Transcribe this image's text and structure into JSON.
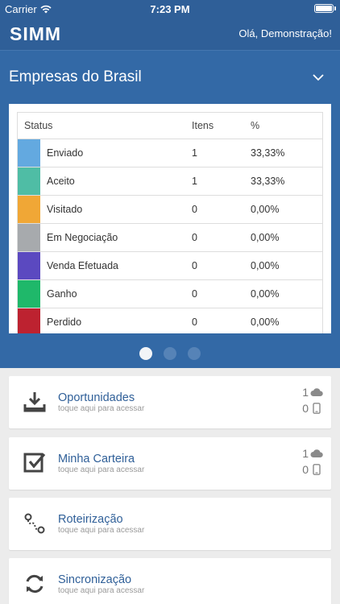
{
  "status_bar": {
    "carrier": "Carrier",
    "time": "7:23 PM"
  },
  "app": {
    "logo": "SIMM",
    "greeting": "Olá, Demonstração!"
  },
  "dashboard": {
    "company": "Empresas do Brasil",
    "table": {
      "headers": {
        "status": "Status",
        "items": "Itens",
        "percent": "%"
      },
      "rows": [
        {
          "label": "Enviado",
          "items": "1",
          "percent": "33,33%",
          "color": "#63a9e0"
        },
        {
          "label": "Aceito",
          "items": "1",
          "percent": "33,33%",
          "color": "#4fbda5"
        },
        {
          "label": "Visitado",
          "items": "0",
          "percent": "0,00%",
          "color": "#f0a736"
        },
        {
          "label": "Em Negociação",
          "items": "0",
          "percent": "0,00%",
          "color": "#a7aaad"
        },
        {
          "label": "Venda Efetuada",
          "items": "0",
          "percent": "0,00%",
          "color": "#5b49c0"
        },
        {
          "label": "Ganho",
          "items": "0",
          "percent": "0,00%",
          "color": "#1fb86a"
        },
        {
          "label": "Perdido",
          "items": "0",
          "percent": "0,00%",
          "color": "#bd2230"
        }
      ]
    },
    "pager": {
      "total": 3,
      "active": 1
    }
  },
  "menu": [
    {
      "title": "Oportunidades",
      "subtitle": "toque aqui para acessar",
      "icon": "inbox-download-icon",
      "cloud_count": "1",
      "device_count": "0"
    },
    {
      "title": "Minha Carteira",
      "subtitle": "toque aqui para acessar",
      "icon": "checkbox-icon",
      "cloud_count": "1",
      "device_count": "0"
    },
    {
      "title": "Roteirização",
      "subtitle": "toque aqui para acessar",
      "icon": "route-icon"
    },
    {
      "title": "Sincronização",
      "subtitle": "toque aqui para acessar",
      "icon": "sync-icon"
    }
  ]
}
